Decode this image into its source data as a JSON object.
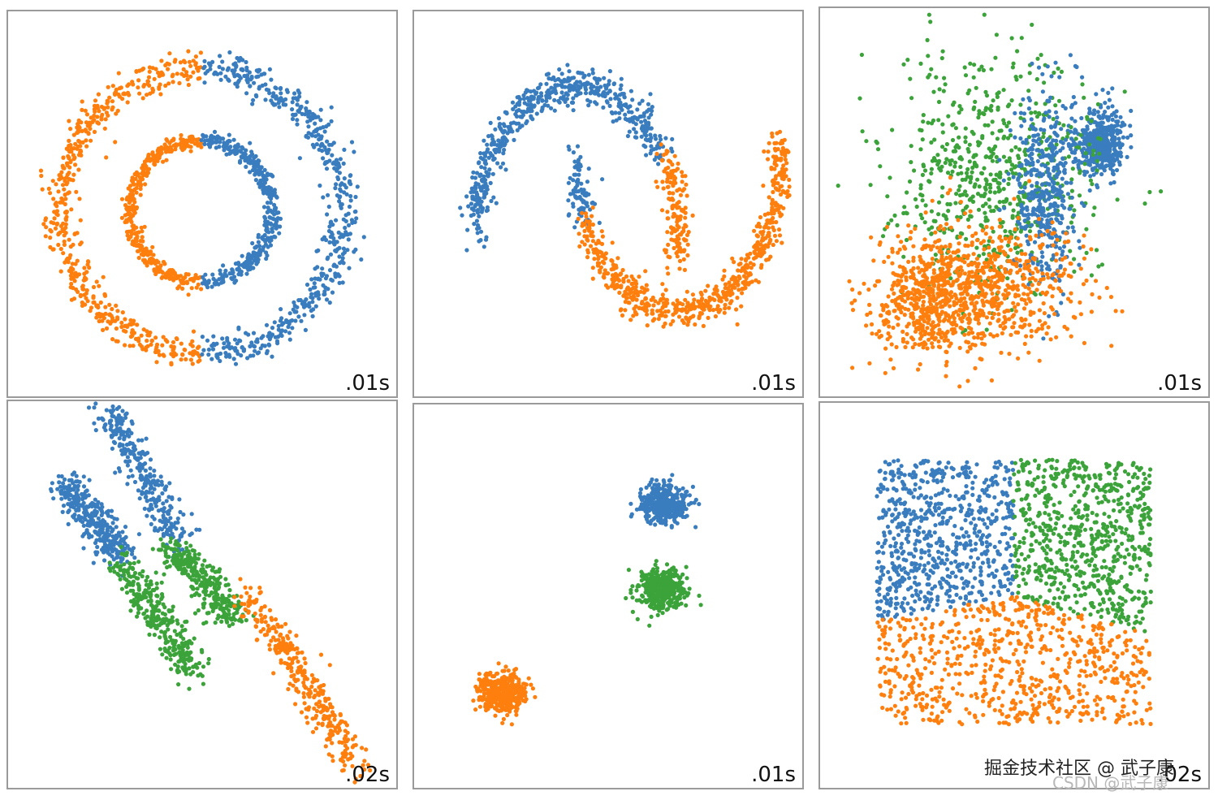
{
  "colors": {
    "blue": "#3a7dbf",
    "orange": "#ff7f0e",
    "green": "#3ba33a",
    "frame": "#9a9a9a"
  },
  "chart_data": [
    {
      "type": "scatter",
      "dataset": "circles",
      "time_label": ".01s",
      "clusters": [
        {
          "color": "orange",
          "shape": "ring-arc",
          "cx": 0,
          "cy": 0,
          "r": 1.0,
          "from_deg": 90,
          "to_deg": 270
        },
        {
          "color": "blue",
          "shape": "ring-arc",
          "cx": 0,
          "cy": 0,
          "r": 1.0,
          "from_deg": -90,
          "to_deg": 90
        },
        {
          "color": "orange",
          "shape": "ring-arc",
          "cx": 0,
          "cy": 0,
          "r": 0.5,
          "from_deg": 90,
          "to_deg": 270
        },
        {
          "color": "blue",
          "shape": "ring-arc",
          "cx": 0,
          "cy": 0,
          "r": 0.5,
          "from_deg": -90,
          "to_deg": 90
        }
      ],
      "xlim": [
        -1.2,
        1.2
      ],
      "ylim": [
        -1.2,
        1.2
      ]
    },
    {
      "type": "scatter",
      "dataset": "moons",
      "time_label": ".01s",
      "clusters": [
        {
          "color": "blue",
          "shape": "moon-upper",
          "from": 0.0,
          "to": 0.78
        },
        {
          "color": "orange",
          "shape": "moon-upper",
          "from": 0.78,
          "to": 1.0
        },
        {
          "color": "blue",
          "shape": "moon-lower",
          "from": 0.0,
          "to": 0.12
        },
        {
          "color": "orange",
          "shape": "moon-lower",
          "from": 0.12,
          "to": 1.0
        }
      ],
      "xlim": [
        -1.2,
        2.2
      ],
      "ylim": [
        -0.7,
        1.2
      ]
    },
    {
      "type": "scatter",
      "dataset": "varied",
      "time_label": ".01s",
      "clusters": [
        {
          "color": "blue",
          "shape": "blob",
          "cx": 0.72,
          "cy": 0.35,
          "sx": 0.03,
          "sy": 0.04
        },
        {
          "color": "green",
          "shape": "blob",
          "cx": 0.45,
          "cy": 0.42,
          "sx": 0.13,
          "sy": 0.15
        },
        {
          "color": "blue",
          "shape": "blob",
          "cx": 0.58,
          "cy": 0.48,
          "sx": 0.04,
          "sy": 0.12
        },
        {
          "color": "orange",
          "shape": "blob",
          "cx": 0.28,
          "cy": 0.75,
          "sx": 0.06,
          "sy": 0.08
        },
        {
          "color": "orange",
          "shape": "blob",
          "cx": 0.42,
          "cy": 0.72,
          "sx": 0.12,
          "sy": 0.08
        }
      ]
    },
    {
      "type": "scatter",
      "dataset": "aniso",
      "time_label": ".02s",
      "clusters": [
        {
          "color": "blue",
          "shape": "band",
          "from": [
            0.25,
            0.0
          ],
          "to": [
            0.45,
            0.38
          ]
        },
        {
          "color": "blue",
          "shape": "band",
          "from": [
            0.15,
            0.22
          ],
          "to": [
            0.3,
            0.4
          ]
        },
        {
          "color": "green",
          "shape": "band",
          "from": [
            0.3,
            0.42
          ],
          "to": [
            0.48,
            0.7
          ]
        },
        {
          "color": "green",
          "shape": "band",
          "from": [
            0.42,
            0.38
          ],
          "to": [
            0.58,
            0.55
          ]
        },
        {
          "color": "orange",
          "shape": "band",
          "from": [
            0.62,
            0.5
          ],
          "to": [
            0.9,
            0.95
          ]
        }
      ]
    },
    {
      "type": "scatter",
      "dataset": "blobs",
      "time_label": ".01s",
      "clusters": [
        {
          "color": "blue",
          "shape": "blob",
          "cx": 0.64,
          "cy": 0.26,
          "sx": 0.03,
          "sy": 0.025
        },
        {
          "color": "green",
          "shape": "blob",
          "cx": 0.64,
          "cy": 0.48,
          "sx": 0.03,
          "sy": 0.025
        },
        {
          "color": "orange",
          "shape": "blob",
          "cx": 0.23,
          "cy": 0.75,
          "sx": 0.03,
          "sy": 0.025
        }
      ]
    },
    {
      "type": "scatter",
      "dataset": "no_structure",
      "time_label": ".02s",
      "clusters": [
        {
          "color": "blue",
          "shape": "region",
          "name": "top-left"
        },
        {
          "color": "green",
          "shape": "region",
          "name": "top-right"
        },
        {
          "color": "orange",
          "shape": "region",
          "name": "bottom"
        }
      ],
      "xlim": [
        0,
        1
      ],
      "ylim": [
        0,
        1
      ]
    }
  ],
  "watermark": {
    "text": "掘金技术社区 @ 武子康",
    "sub": "CSDN @武子康"
  }
}
